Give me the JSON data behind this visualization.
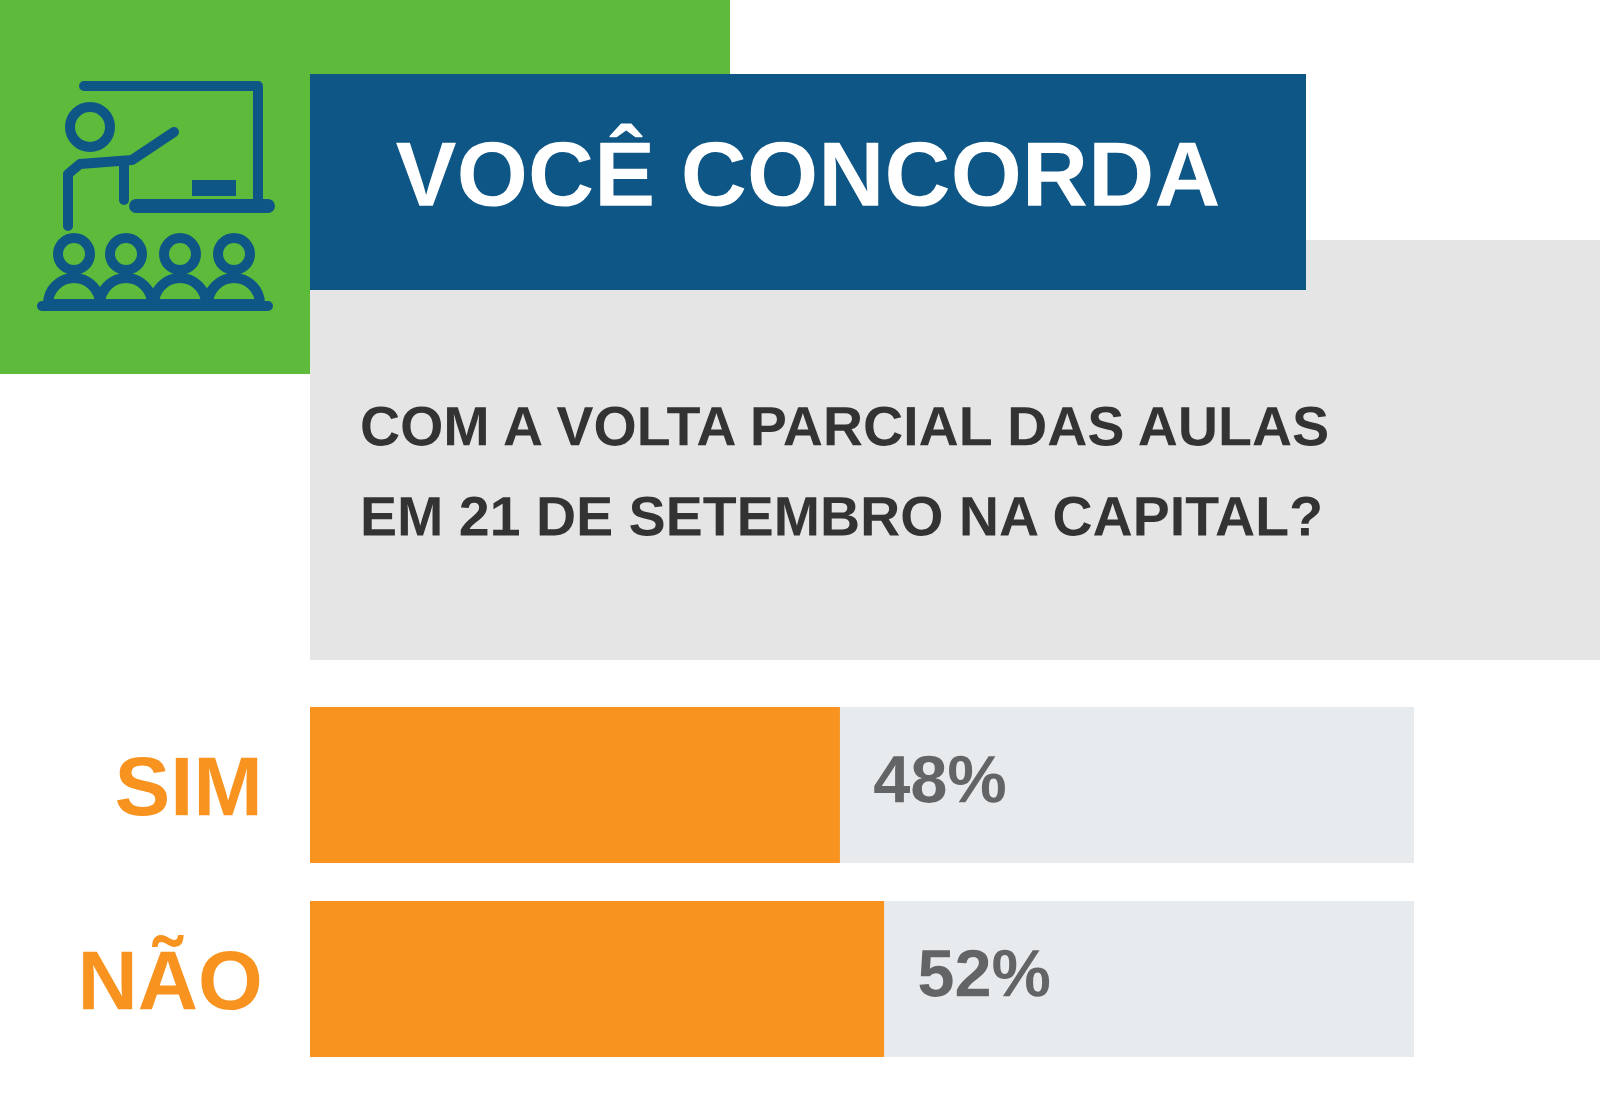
{
  "chart_data": {
    "type": "bar",
    "orientation": "horizontal",
    "title": "VOCÊ CONCORDA",
    "subtitle": "COM A VOLTA PARCIAL DAS AULAS\nEM 21 DE SETEMBRO NA CAPITAL?",
    "categories": [
      "SIM",
      "NÃO"
    ],
    "values": [
      48,
      52
    ],
    "value_labels": [
      "48%",
      "52%"
    ],
    "color": "#f7931e",
    "xlim": [
      0,
      100
    ],
    "tick_labels": "y"
  }
}
